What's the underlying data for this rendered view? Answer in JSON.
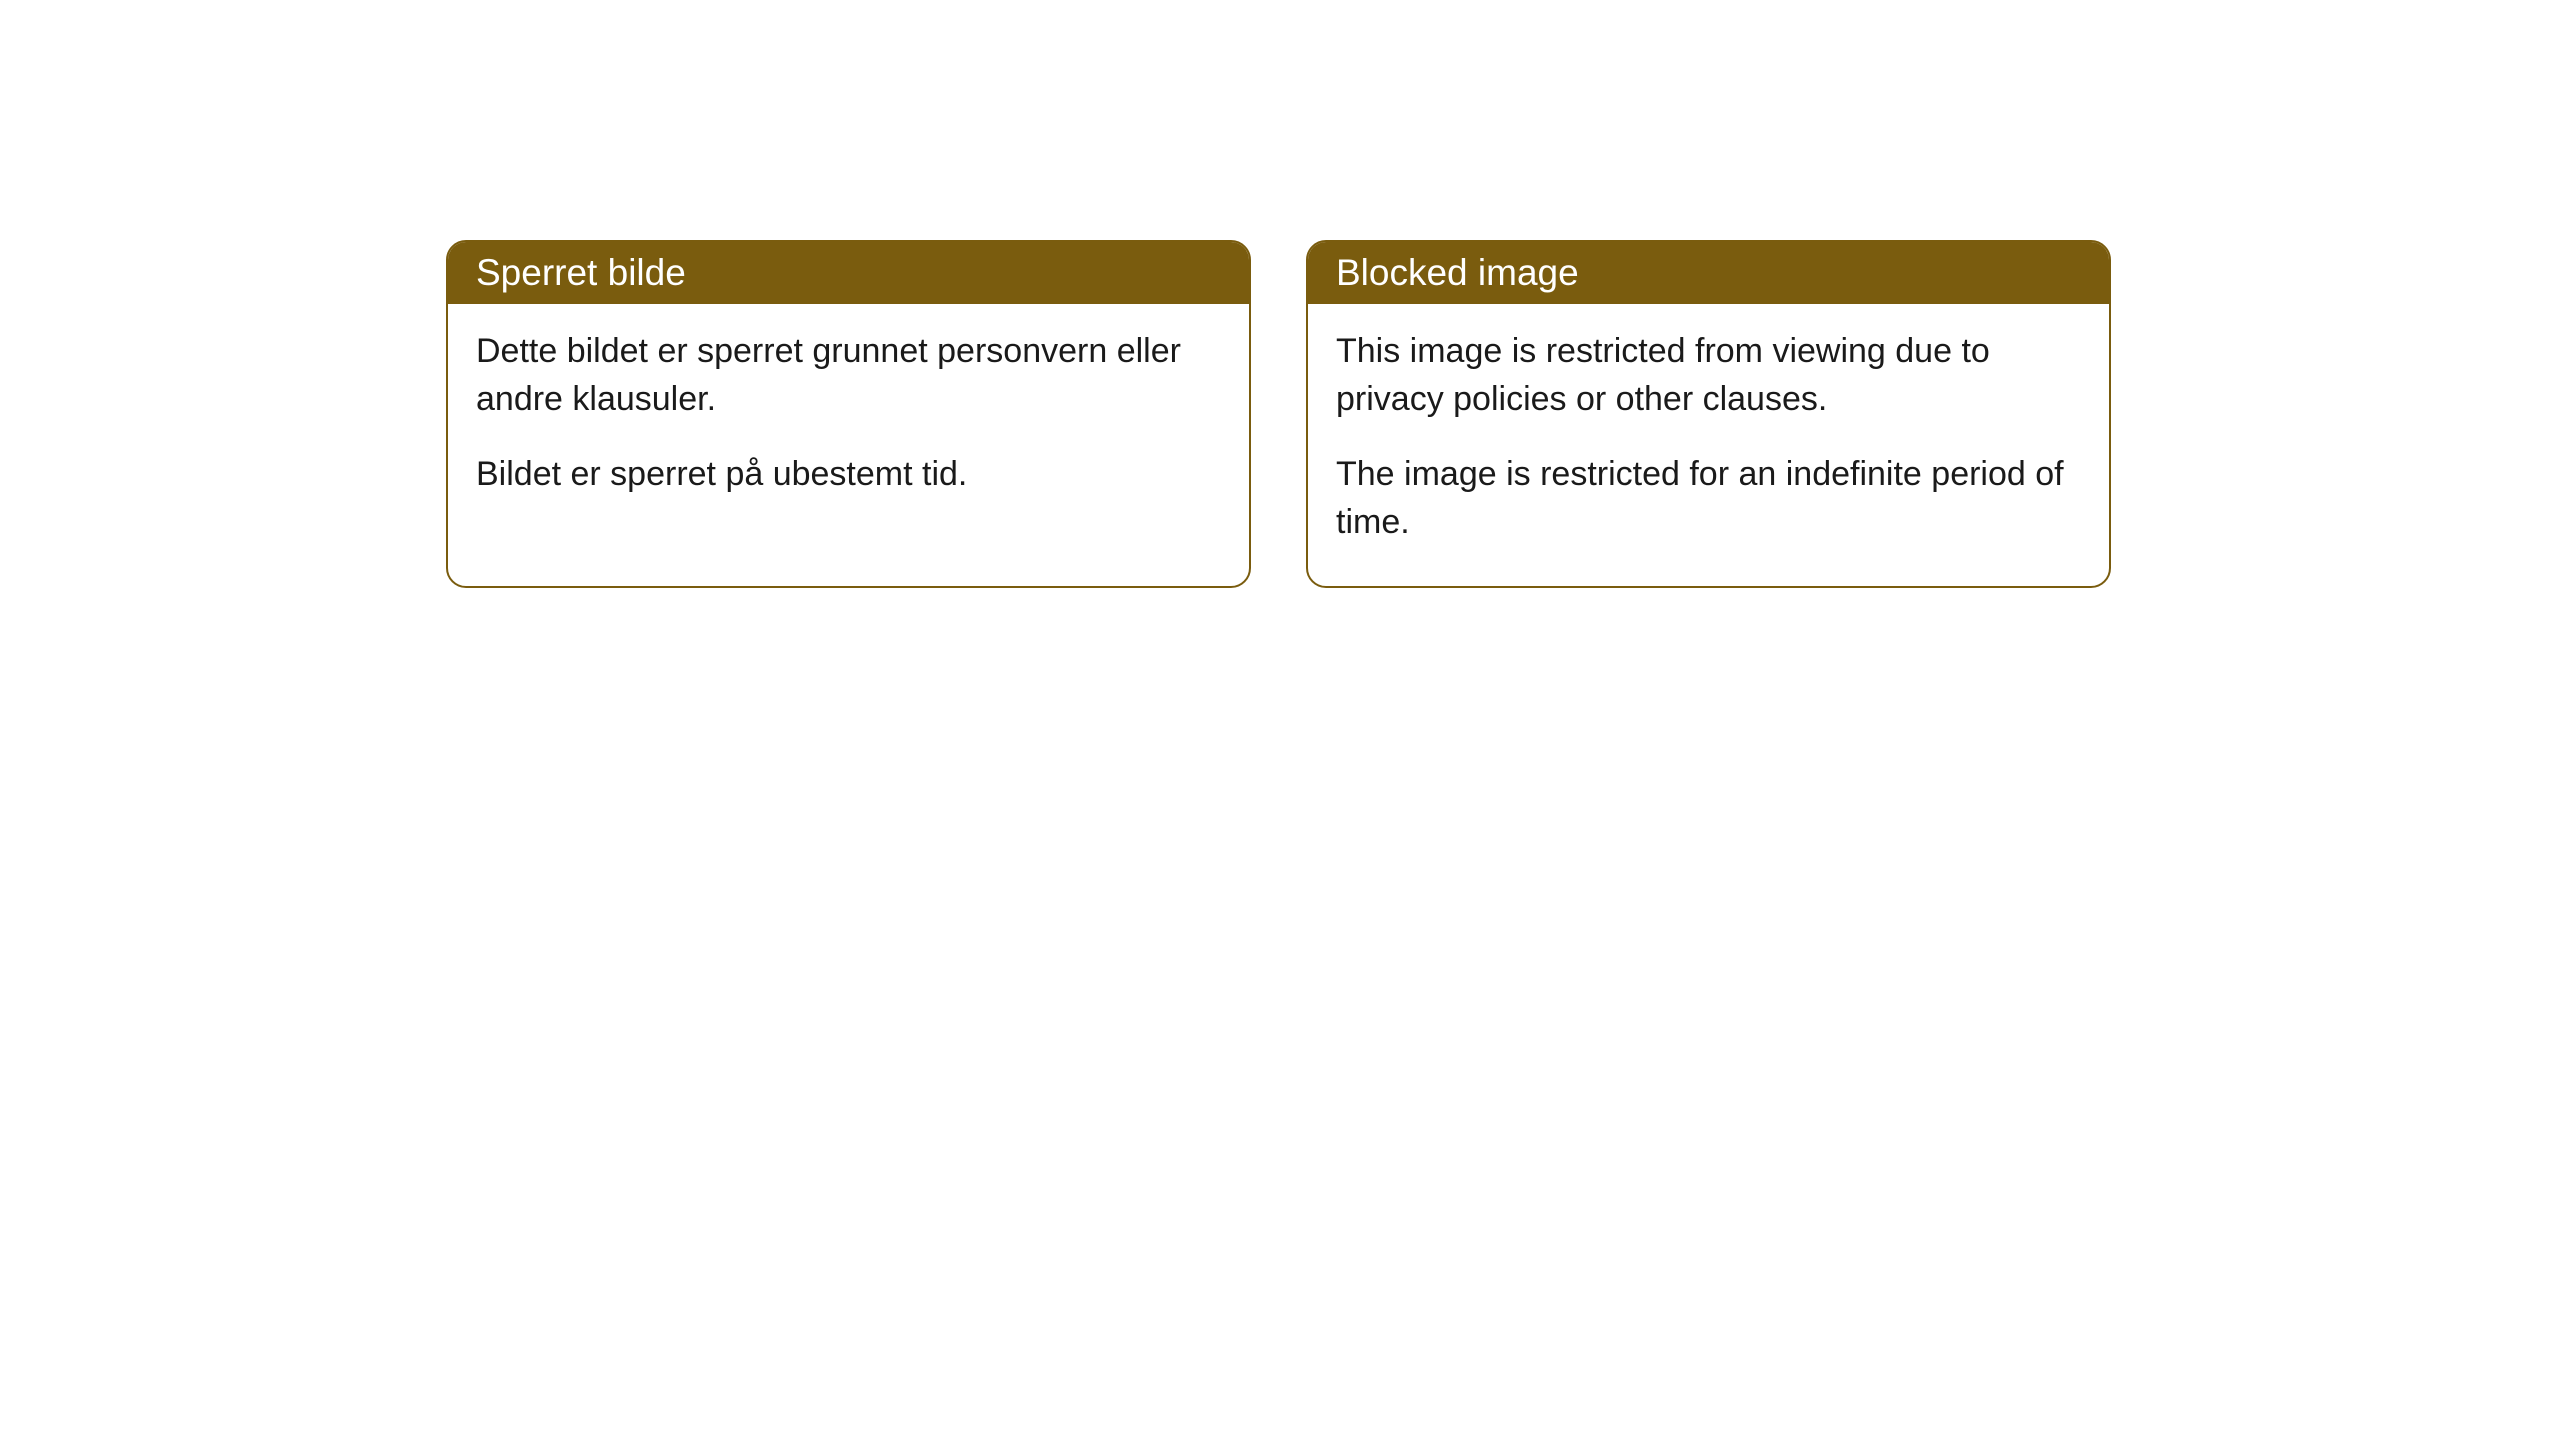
{
  "cards": [
    {
      "title": "Sperret bilde",
      "paragraph1": "Dette bildet er sperret grunnet personvern eller andre klausuler.",
      "paragraph2": "Bildet er sperret på ubestemt tid."
    },
    {
      "title": "Blocked image",
      "paragraph1": "This image is restricted from viewing due to privacy policies or other clauses.",
      "paragraph2": "The image is restricted for an indefinite period of time."
    }
  ],
  "style": {
    "header_bg": "#7a5c0e",
    "header_color": "#ffffff",
    "border_color": "#7a5c0e",
    "body_bg": "#ffffff",
    "text_color": "#1a1a1a",
    "page_bg": "#ffffff",
    "border_radius": 20,
    "header_fontsize": 37,
    "body_fontsize": 34
  }
}
